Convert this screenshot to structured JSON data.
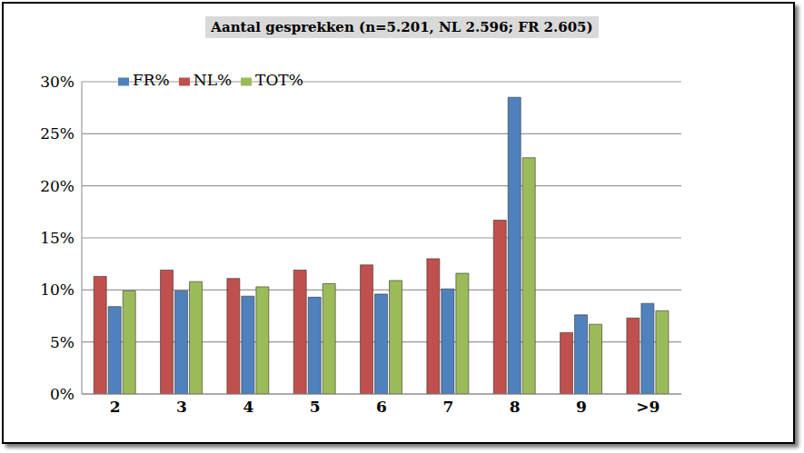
{
  "chart_data": {
    "type": "bar",
    "title": "Aantal gesprekken (n=5.201, NL 2.596; FR 2.605)",
    "categories": [
      "2",
      "3",
      "4",
      "5",
      "6",
      "7",
      "8",
      "9",
      ">9"
    ],
    "series": [
      {
        "name": "NL%",
        "color": "#c0504d",
        "values": [
          11.3,
          11.9,
          11.1,
          11.9,
          12.4,
          13.0,
          16.7,
          5.9,
          7.3
        ]
      },
      {
        "name": "FR%",
        "color": "#4f81bd",
        "values": [
          8.4,
          9.9,
          9.4,
          9.3,
          9.6,
          10.1,
          28.5,
          7.6,
          8.7
        ]
      },
      {
        "name": "TOT%",
        "color": "#9bbb59",
        "values": [
          9.9,
          10.8,
          10.3,
          10.6,
          10.9,
          11.6,
          22.7,
          6.7,
          8.0
        ]
      }
    ],
    "ylim": [
      0,
      30
    ],
    "yticks": [
      {
        "value": 0,
        "label": "0%"
      },
      {
        "value": 5,
        "label": "5%"
      },
      {
        "value": 10,
        "label": "10%"
      },
      {
        "value": 15,
        "label": "15%"
      },
      {
        "value": 20,
        "label": "20%"
      },
      {
        "value": 25,
        "label": "25%"
      },
      {
        "value": 30,
        "label": "30%"
      }
    ],
    "grid": true,
    "legend": "top-left"
  }
}
